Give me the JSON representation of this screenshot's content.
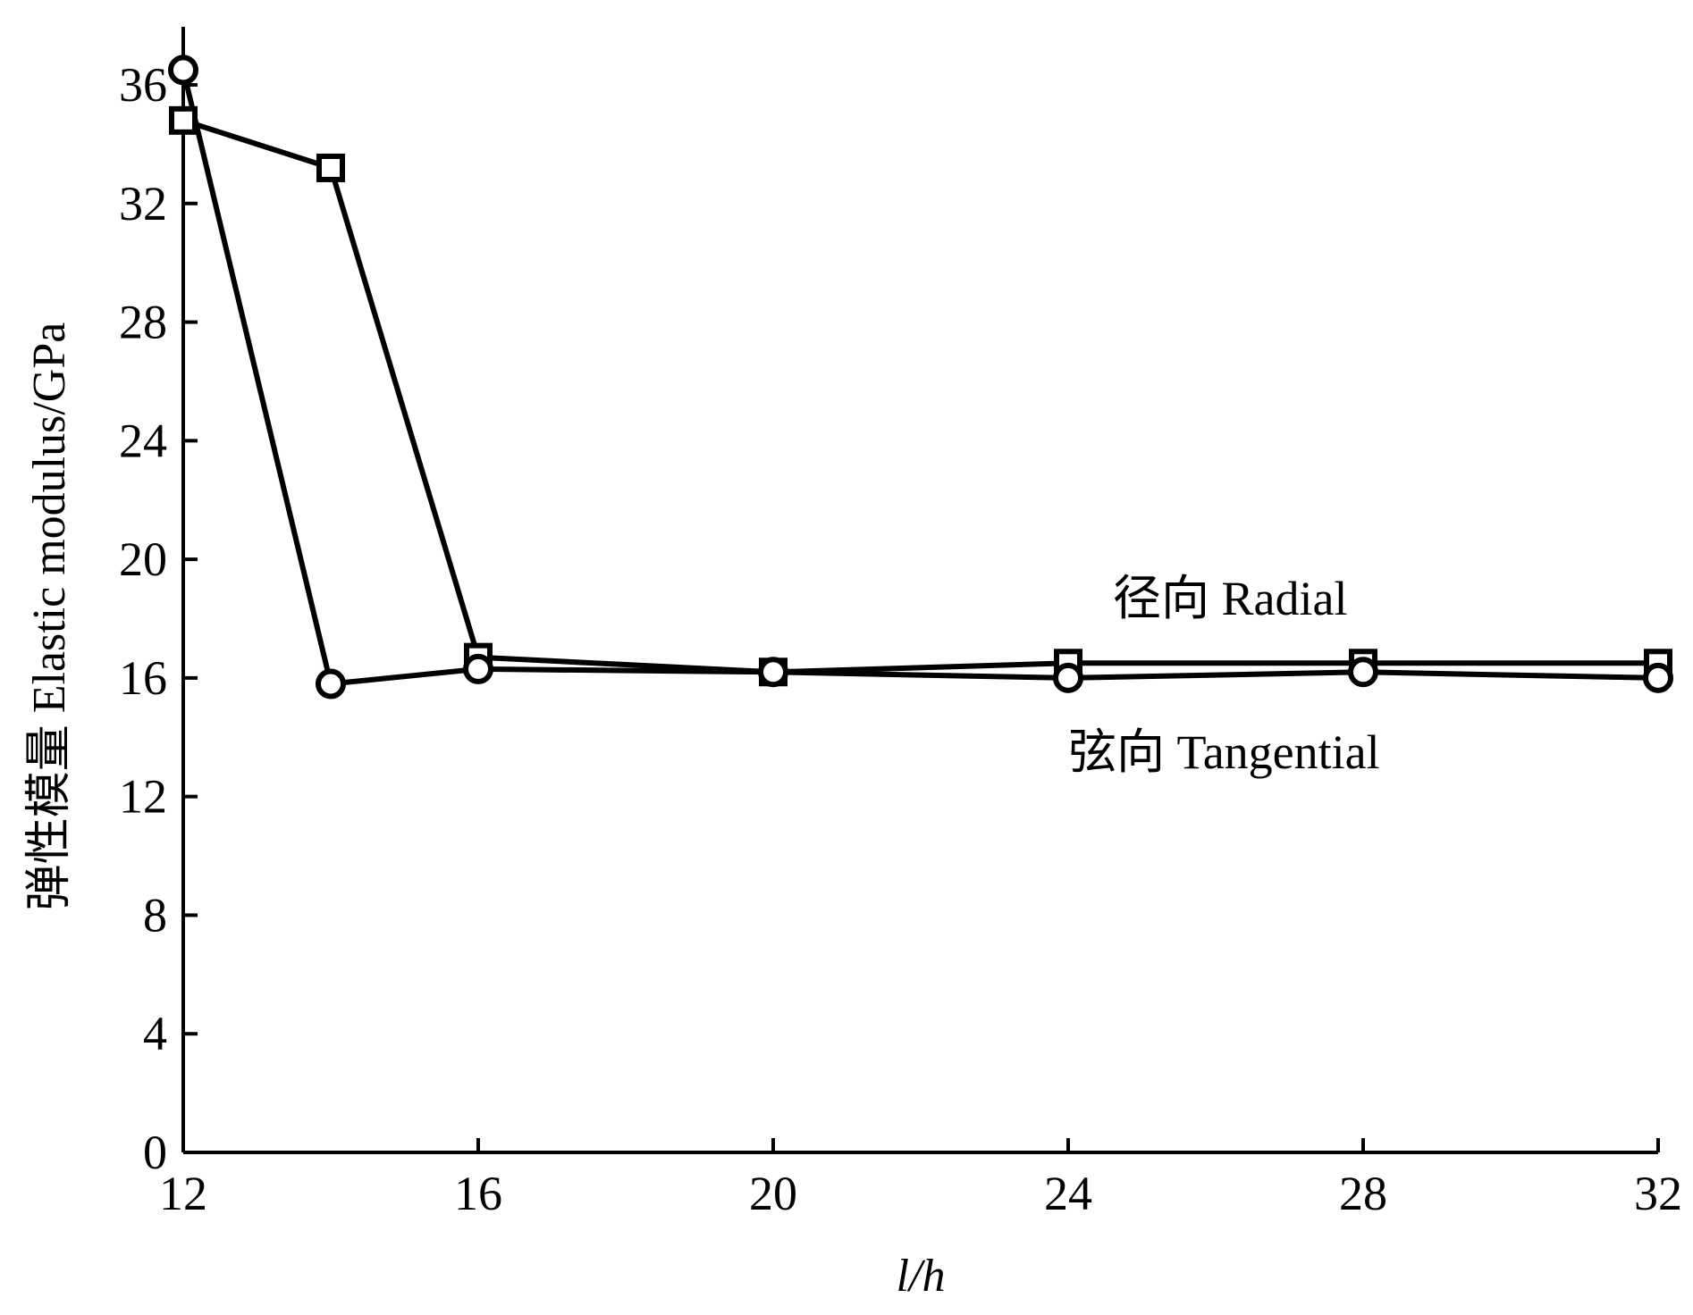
{
  "chart_data": {
    "type": "line",
    "xlabel": "l/h",
    "ylabel": "弹性模量  Elastic modulus/GPa",
    "xlim": [
      12,
      32
    ],
    "ylim": [
      0,
      38
    ],
    "xticks": [
      12,
      16,
      20,
      24,
      28,
      32
    ],
    "yticks": [
      0,
      4,
      8,
      12,
      16,
      20,
      24,
      28,
      32,
      36
    ],
    "grid": false,
    "series": [
      {
        "name": "径向  Radial",
        "marker": "square",
        "x": [
          12,
          14,
          16,
          20,
          24,
          28,
          32
        ],
        "y": [
          34.8,
          33.2,
          16.7,
          16.2,
          16.5,
          16.5,
          16.5
        ]
      },
      {
        "name": "弦向  Tangential",
        "marker": "circle",
        "x": [
          12,
          14,
          16,
          20,
          24,
          28,
          32
        ],
        "y": [
          36.5,
          15.8,
          16.3,
          16.2,
          16.0,
          16.2,
          16.0
        ]
      }
    ],
    "annotations": [
      {
        "text": "径向  Radial",
        "series": 0
      },
      {
        "text": "弦向  Tangential",
        "series": 1
      }
    ]
  }
}
